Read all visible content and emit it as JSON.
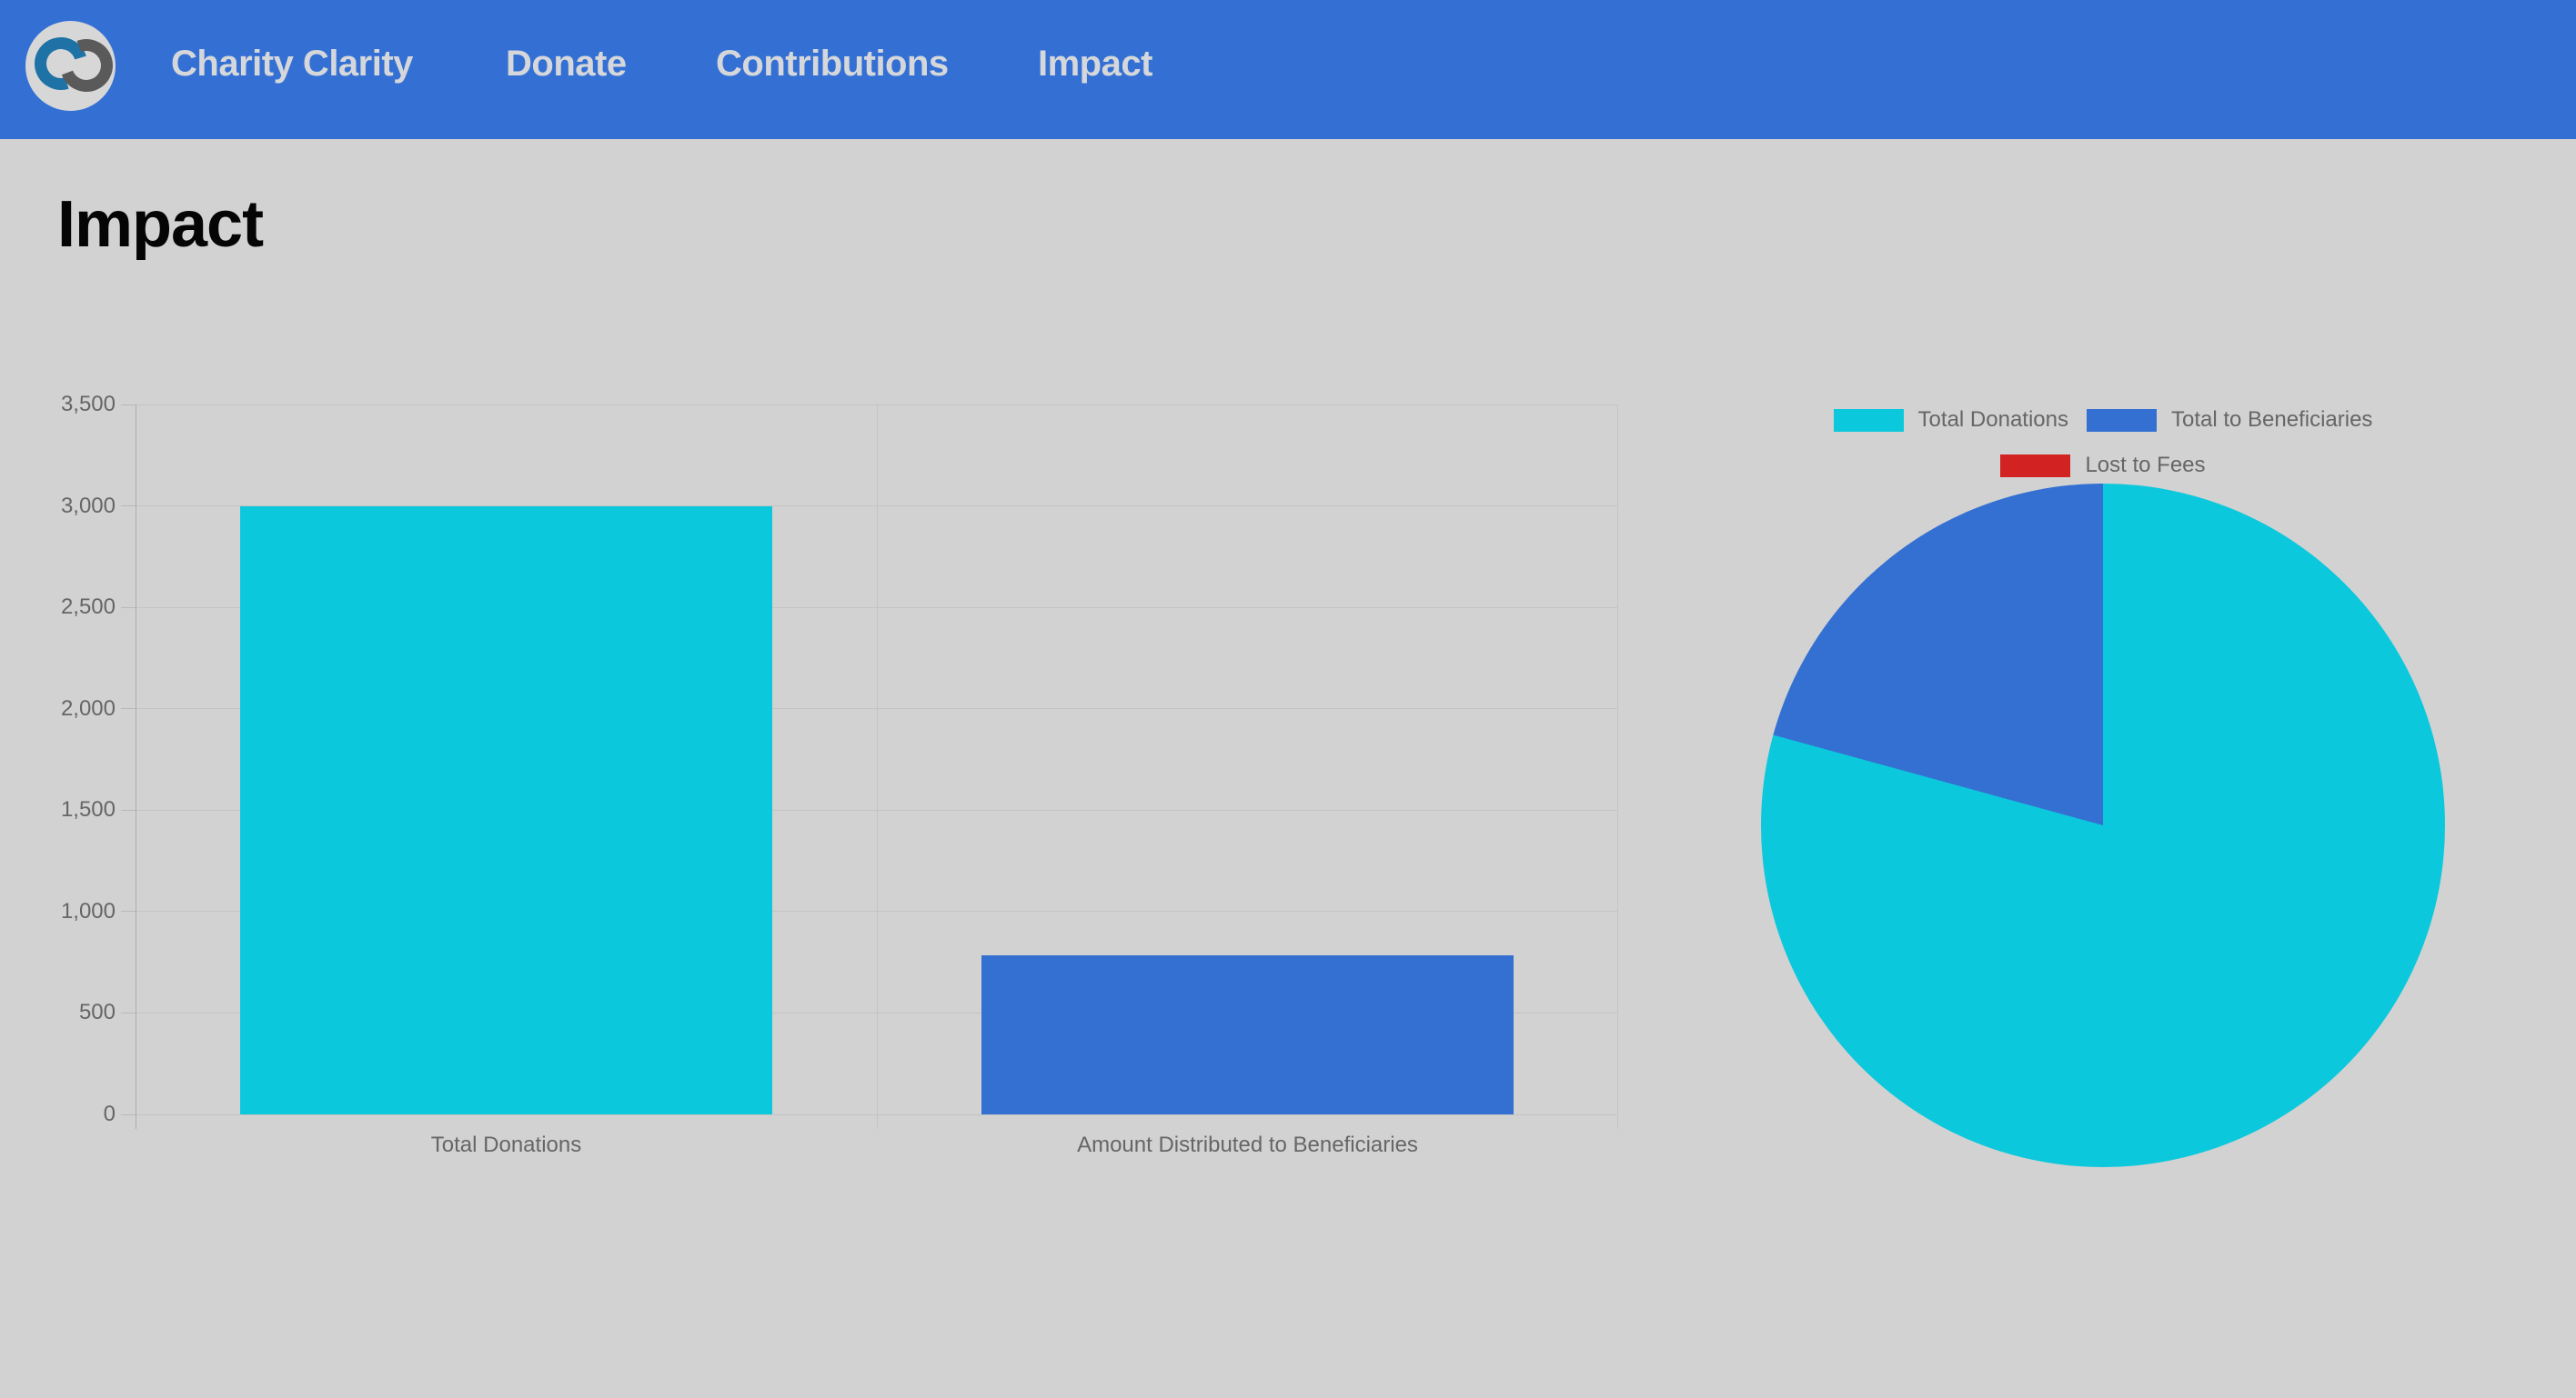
{
  "navbar": {
    "brand": "Charity Clarity",
    "links": [
      {
        "label": "Donate"
      },
      {
        "label": "Contributions"
      },
      {
        "label": "Impact"
      }
    ],
    "colors": {
      "background": "#3470d4",
      "text": "#d5d7da",
      "logo_blue": "#1e72a6",
      "logo_gray": "#5a5a5a"
    }
  },
  "page": {
    "title": "Impact",
    "background": "#d2d2d2"
  },
  "chart_data": [
    {
      "type": "bar",
      "title": "",
      "categories": [
        "Total Donations",
        "Amount Distributed to Beneficiaries"
      ],
      "values": [
        3000,
        785
      ],
      "colors": [
        "#0cc8dc",
        "#3470d2"
      ],
      "xlabel": "",
      "ylabel": "",
      "ylim": [
        0,
        3500
      ],
      "ytick_step": 500,
      "ytick_labels": [
        "0",
        "500",
        "1,000",
        "1,500",
        "2,000",
        "2,500",
        "3,000",
        "3,500"
      ],
      "grid": true,
      "legend_position": "none",
      "bar_fraction": 0.717
    },
    {
      "type": "pie",
      "labels": [
        "Total Donations",
        "Total to Beneficiaries",
        "Lost to Fees"
      ],
      "values": [
        3000,
        785,
        0
      ],
      "colors": [
        "#0cc8dc",
        "#3470d2",
        "#d32222"
      ],
      "legend_position": "top",
      "tick_text_color": "#666666"
    }
  ]
}
